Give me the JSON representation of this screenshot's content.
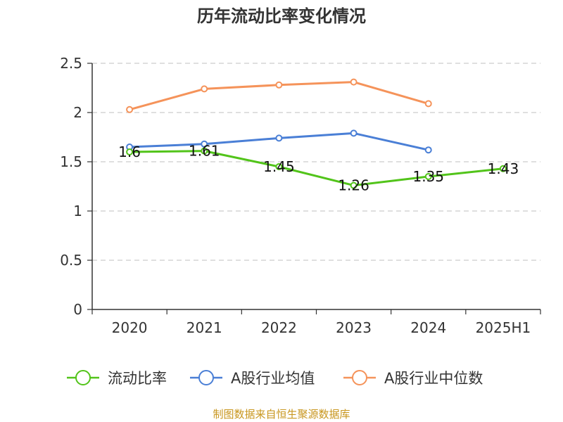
{
  "colors": {
    "current_ratio": "#52c41a",
    "industry_avg": "#4a7fd6",
    "industry_median": "#f5935a",
    "grid": "#cccccc",
    "axis": "#333333",
    "source": "#c8961e"
  },
  "chart_data": {
    "type": "line",
    "title": "历年流动比率变化情况",
    "categories": [
      "2020",
      "2021",
      "2022",
      "2023",
      "2024",
      "2025H1"
    ],
    "ylim": [
      0,
      2.5
    ],
    "yticks": [
      "0",
      "0.5",
      "1",
      "1.5",
      "2",
      "2.5"
    ],
    "grid": true,
    "legend_position": "bottom",
    "series": [
      {
        "name": "流动比率",
        "values": [
          1.6,
          1.61,
          1.45,
          1.26,
          1.35,
          1.43
        ],
        "labels": [
          "1.6",
          "1.61",
          "1.45",
          "1.26",
          "1.35",
          "1.43"
        ]
      },
      {
        "name": "A股行业均值",
        "values": [
          1.65,
          1.68,
          1.74,
          1.79,
          1.62,
          null
        ]
      },
      {
        "name": "A股行业中位数",
        "values": [
          2.03,
          2.24,
          2.28,
          2.31,
          2.09,
          null
        ]
      }
    ],
    "source": "制图数据来自恒生聚源数据库"
  }
}
